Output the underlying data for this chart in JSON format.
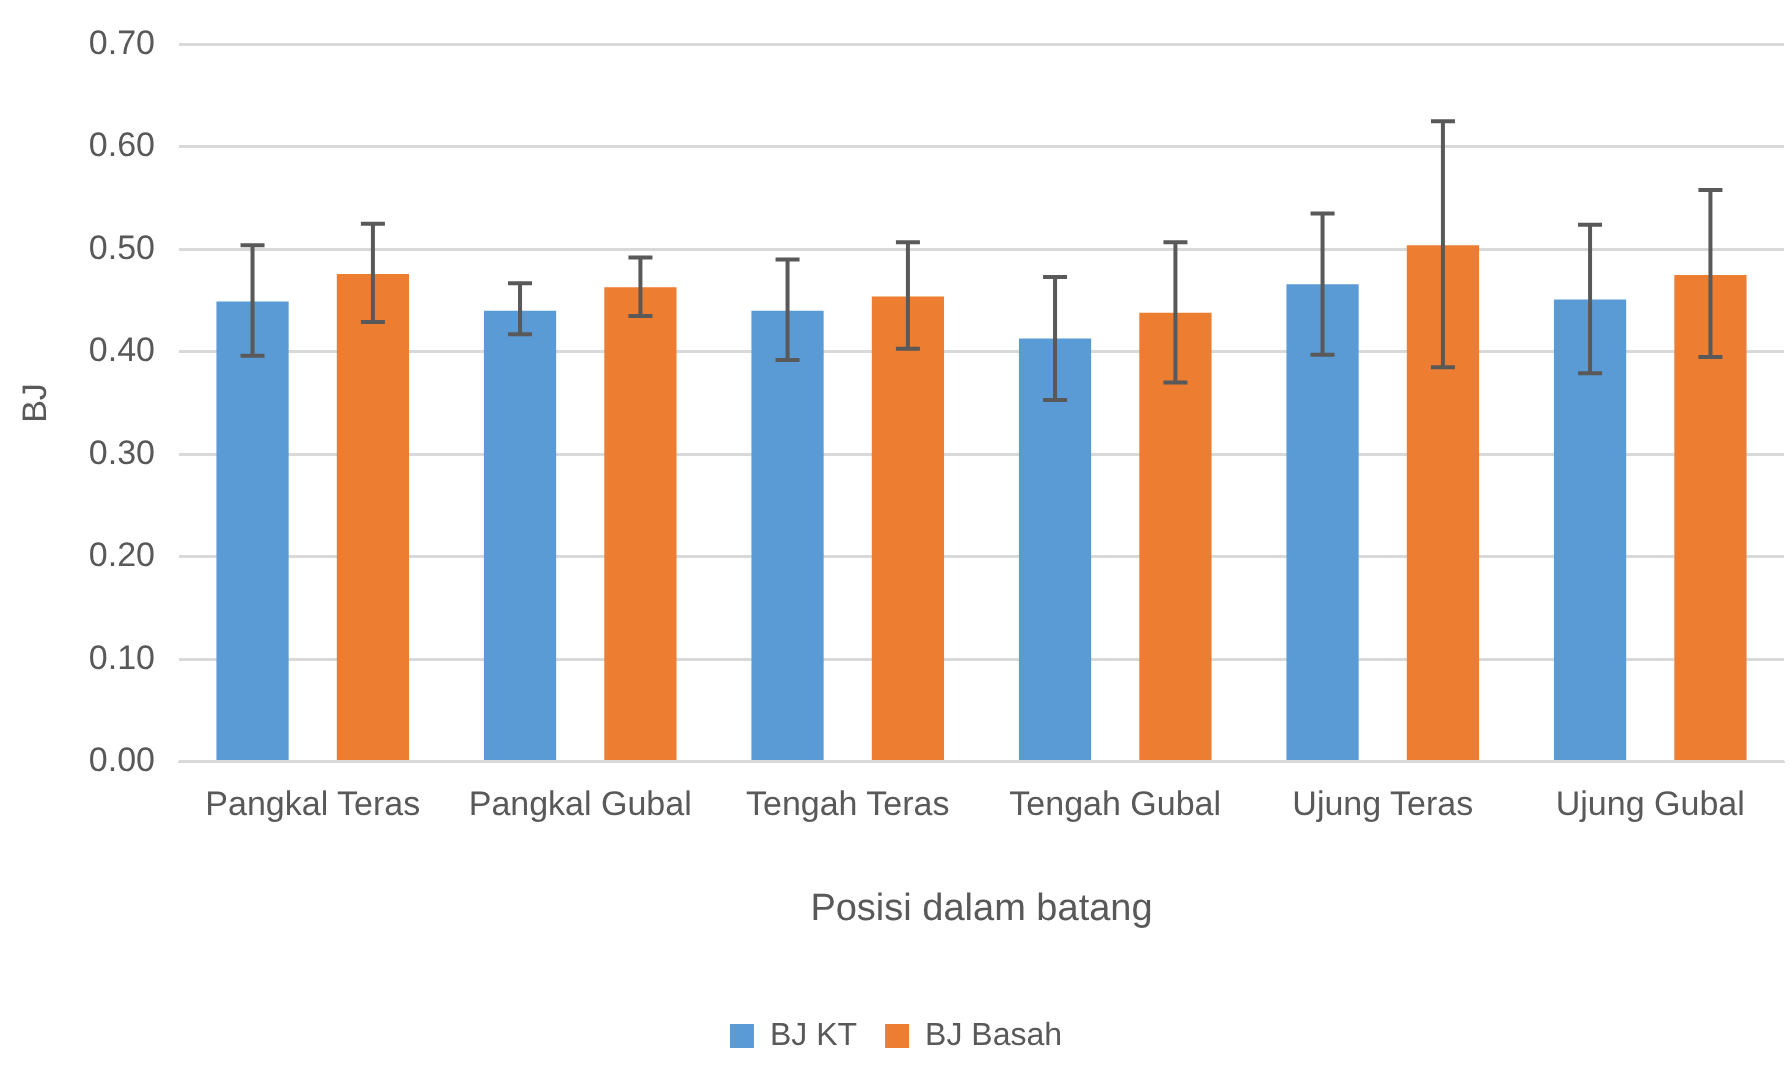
{
  "chart_data": {
    "type": "bar",
    "xlabel": "Posisi dalam batang",
    "ylabel": "BJ",
    "categories": [
      "Pangkal Teras",
      "Pangkal Gubal",
      "Tengah Teras",
      "Tengah Gubal",
      "Ujung Teras",
      "Ujung Gubal"
    ],
    "series": [
      {
        "name": "BJ KT",
        "color": "#5b9bd5",
        "values": [
          0.449,
          0.44,
          0.44,
          0.413,
          0.466,
          0.451
        ],
        "errors": [
          [
            0.396,
            0.504
          ],
          [
            0.417,
            0.467
          ],
          [
            0.392,
            0.49
          ],
          [
            0.353,
            0.473
          ],
          [
            0.397,
            0.535
          ],
          [
            0.379,
            0.524
          ]
        ]
      },
      {
        "name": "BJ Basah",
        "color": "#ed7d31",
        "values": [
          0.476,
          0.463,
          0.454,
          0.438,
          0.504,
          0.475
        ],
        "errors": [
          [
            0.429,
            0.525
          ],
          [
            0.435,
            0.492
          ],
          [
            0.403,
            0.507
          ],
          [
            0.37,
            0.507
          ],
          [
            0.385,
            0.625
          ],
          [
            0.395,
            0.558
          ]
        ]
      }
    ],
    "ylim": [
      0,
      0.7
    ],
    "yticks": [
      {
        "value": 0,
        "label": "0.00"
      },
      {
        "value": 0.1,
        "label": "0.10"
      },
      {
        "value": 0.2,
        "label": "0.20"
      },
      {
        "value": 0.3,
        "label": "0.30"
      },
      {
        "value": 0.4,
        "label": "0.40"
      },
      {
        "value": 0.5,
        "label": "0.50"
      },
      {
        "value": 0.6,
        "label": "0.60"
      },
      {
        "value": 0.7,
        "label": "0.70"
      }
    ],
    "grid": "y",
    "legend": "bottom"
  }
}
